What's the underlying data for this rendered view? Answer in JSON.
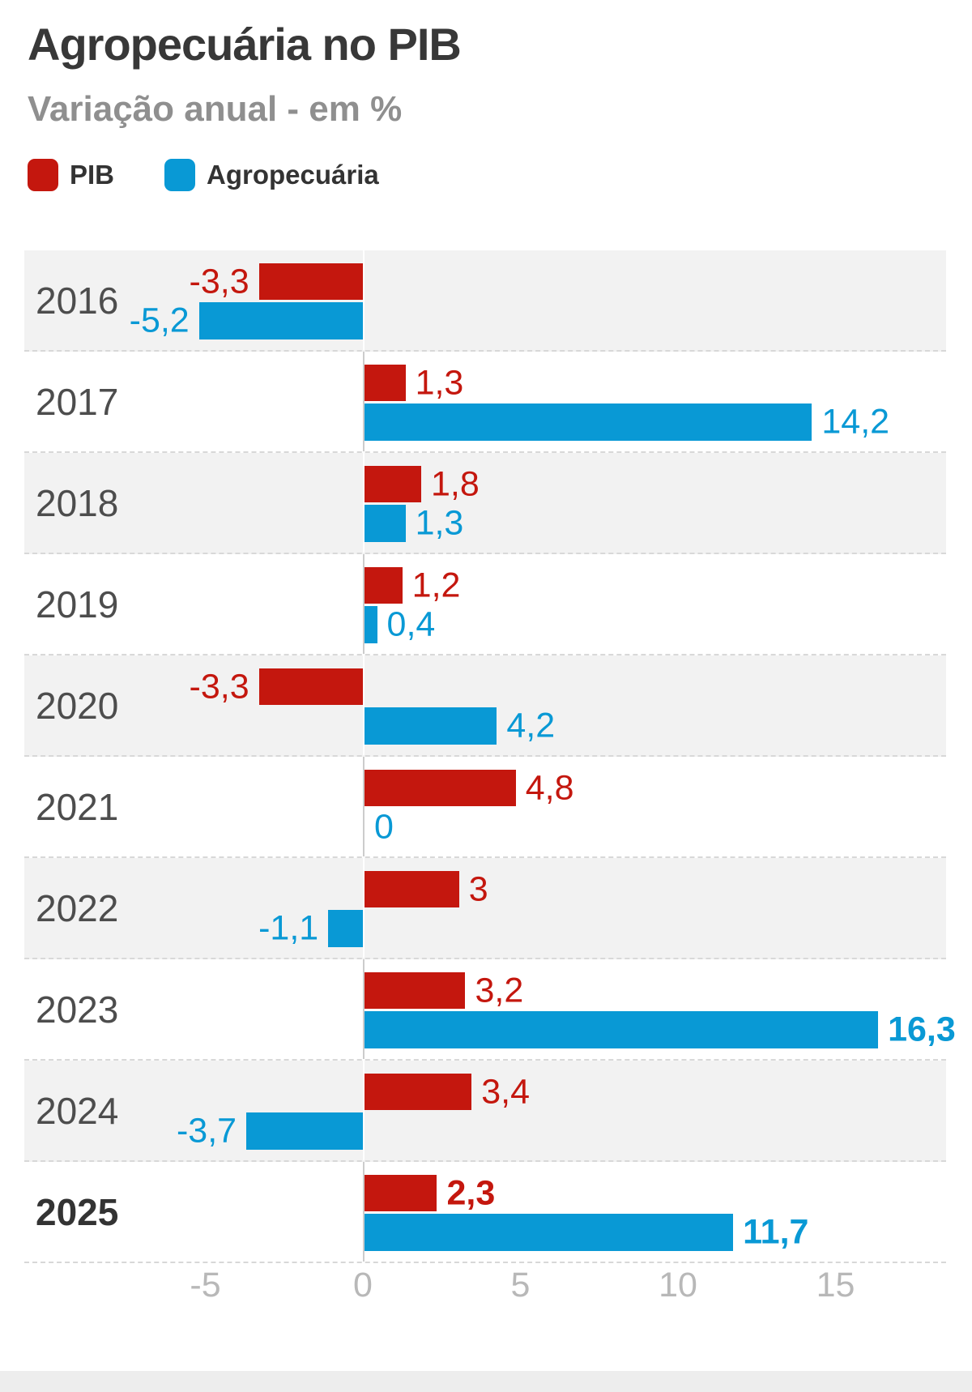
{
  "header": {
    "title": "Agropecuária no PIB",
    "subtitle": "Variação anual - em %"
  },
  "legend": {
    "items": [
      {
        "label": "PIB",
        "color": "#c4170e"
      },
      {
        "label": "Agropecuária",
        "color": "#0999d5"
      }
    ]
  },
  "chart_data": {
    "type": "bar",
    "orientation": "horizontal",
    "title": "Agropecuária no PIB",
    "subtitle": "Variação anual - em %",
    "categories": [
      "2016",
      "2017",
      "2018",
      "2019",
      "2020",
      "2021",
      "2022",
      "2023",
      "2024",
      "2025"
    ],
    "bold_categories": [
      "2025"
    ],
    "series": [
      {
        "name": "PIB",
        "color": "#c4170e",
        "values": [
          -3.3,
          1.3,
          1.8,
          1.2,
          -3.3,
          4.8,
          3,
          3.2,
          3.4,
          2.3
        ],
        "labels": [
          "-3,3",
          "1,3",
          "1,8",
          "1,2",
          "-3,3",
          "4,8",
          "3",
          "3,2",
          "3,4",
          "2,3"
        ],
        "bold": [
          false,
          false,
          false,
          false,
          false,
          false,
          false,
          false,
          false,
          true
        ]
      },
      {
        "name": "Agropecuária",
        "color": "#0999d5",
        "values": [
          -5.2,
          14.2,
          1.3,
          0.4,
          4.2,
          0,
          -1.1,
          16.3,
          -3.7,
          11.7
        ],
        "labels": [
          "-5,2",
          "14,2",
          "1,3",
          "0,4",
          "4,2",
          "0",
          "-1,1",
          "16,3",
          "-3,7",
          "11,7"
        ],
        "bold": [
          false,
          false,
          false,
          false,
          false,
          false,
          false,
          true,
          false,
          true
        ]
      }
    ],
    "x_axis": {
      "ticks": [
        -5,
        0,
        5,
        10,
        15
      ],
      "tick_labels": [
        "-5",
        "0",
        "5",
        "10",
        "15"
      ],
      "range": [
        -10.7,
        18.5
      ]
    },
    "grid": "dashed-row-separators, no vertical gridlines, solid zero axis line",
    "legend_position": "top-left",
    "row_shading": "alternating starting gray at 2016"
  }
}
